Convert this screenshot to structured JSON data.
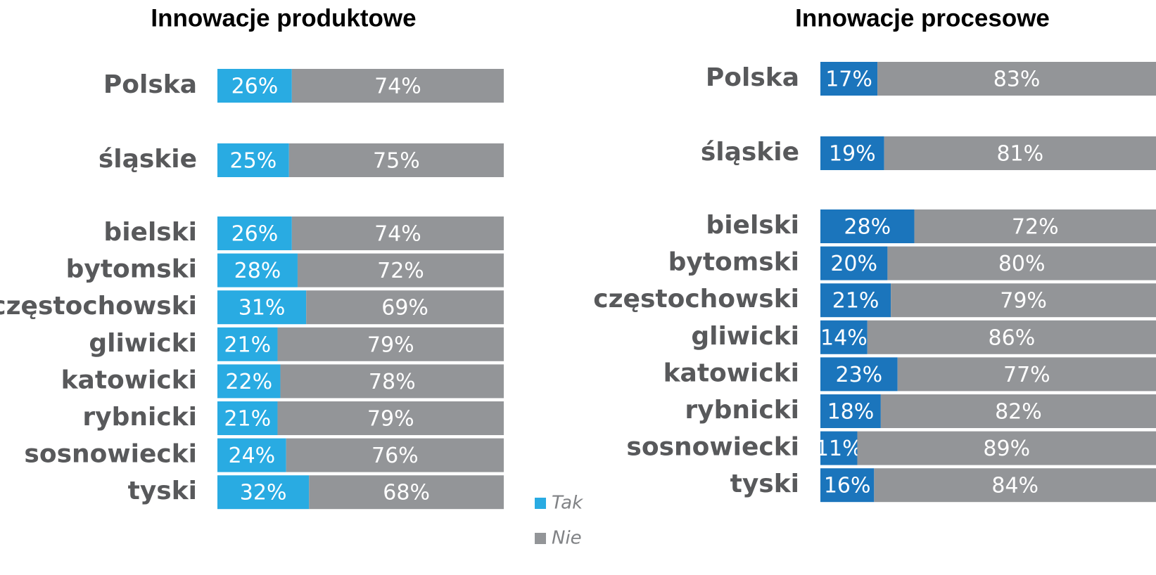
{
  "chart_data": [
    {
      "type": "bar",
      "orientation": "horizontal",
      "stacked": true,
      "title": "Innowacje produktowe",
      "categories": [
        "Polska",
        "śląskie",
        "bielski",
        "bytomski",
        "częstochowski",
        "gliwicki",
        "katowicki",
        "rybnicki",
        "sosnowiecki",
        "tyski"
      ],
      "series": [
        {
          "name": "Tak",
          "color": "#29abe2",
          "values": [
            26,
            25,
            26,
            28,
            31,
            21,
            22,
            21,
            24,
            32
          ],
          "value_labels": [
            "26%",
            "25%",
            "26%",
            "28%",
            "31%",
            "21%",
            "22%",
            "21%",
            "24%",
            "32%"
          ]
        },
        {
          "name": "Nie",
          "color": "#939598",
          "values": [
            74,
            75,
            74,
            72,
            69,
            79,
            78,
            79,
            76,
            68
          ],
          "value_labels": [
            "74%",
            "75%",
            "74%",
            "72%",
            "69%",
            "79%",
            "78%",
            "79%",
            "76%",
            "68%"
          ]
        }
      ]
    },
    {
      "type": "bar",
      "orientation": "horizontal",
      "stacked": true,
      "title": "Innowacje procesowe",
      "categories": [
        "Polska",
        "śląskie",
        "bielski",
        "bytomski",
        "częstochowski",
        "gliwicki",
        "katowicki",
        "rybnicki",
        "sosnowiecki",
        "tyski"
      ],
      "series": [
        {
          "color": "#1b75bc",
          "values": [
            17,
            19,
            28,
            20,
            21,
            14,
            23,
            18,
            11,
            16
          ],
          "value_labels": [
            "17%",
            "19%",
            "28%",
            "20%",
            "21%",
            "14%",
            "23%",
            "18%",
            "11%",
            "16%"
          ]
        },
        {
          "color": "#939598",
          "values": [
            83,
            81,
            72,
            80,
            79,
            86,
            77,
            82,
            89,
            84
          ],
          "value_labels": [
            "83%",
            "81%",
            "72%",
            "80%",
            "79%",
            "86%",
            "77%",
            "82%",
            "89%",
            "84%"
          ]
        }
      ]
    }
  ]
}
